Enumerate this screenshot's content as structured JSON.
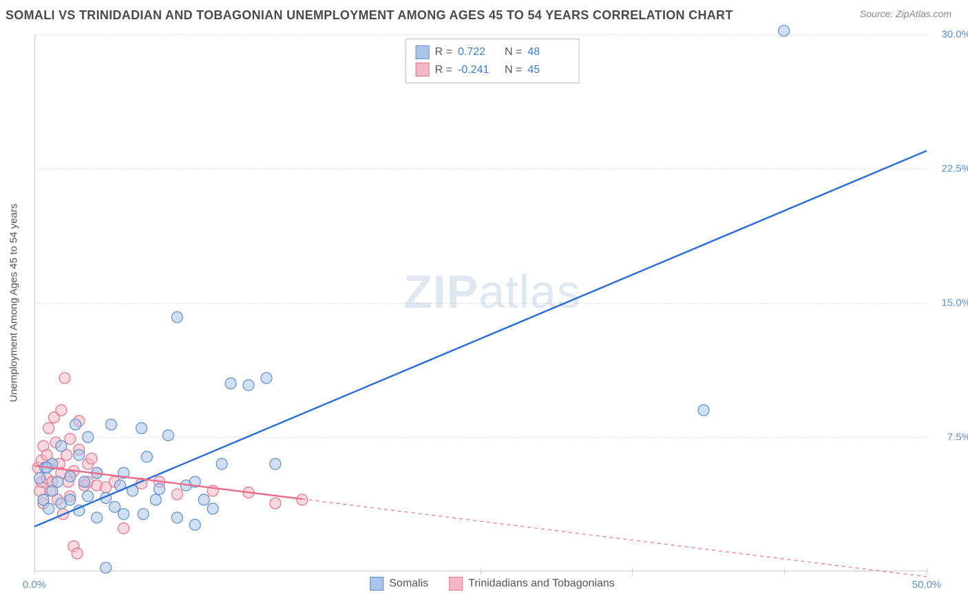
{
  "title": "SOMALI VS TRINIDADIAN AND TOBAGONIAN UNEMPLOYMENT AMONG AGES 45 TO 54 YEARS CORRELATION CHART",
  "source": "Source: ZipAtlas.com",
  "y_axis_label": "Unemployment Among Ages 45 to 54 years",
  "watermark": {
    "part1": "ZIP",
    "part2": "atlas"
  },
  "chart": {
    "type": "scatter",
    "background_color": "#ffffff",
    "grid_color": "#e0e0e0",
    "axis_color": "#cccccc",
    "xlim": [
      0,
      50
    ],
    "ylim": [
      0,
      30
    ],
    "x_ticks": [
      {
        "pos": 0,
        "label": "0.0%"
      },
      {
        "pos": 25,
        "label": ""
      },
      {
        "pos": 33.5,
        "label": ""
      },
      {
        "pos": 42,
        "label": ""
      },
      {
        "pos": 50,
        "label": "50.0%"
      }
    ],
    "y_ticks": [
      {
        "pos": 7.5,
        "label": "7.5%"
      },
      {
        "pos": 15.0,
        "label": "15.0%"
      },
      {
        "pos": 22.5,
        "label": "22.5%"
      },
      {
        "pos": 30.0,
        "label": "30.0%"
      }
    ],
    "marker_radius": 8,
    "marker_opacity": 0.55,
    "line_width": 2.5,
    "series": [
      {
        "name": "Somalis",
        "color_fill": "#a9c5ea",
        "color_stroke": "#5b8fd6",
        "line_color": "#2d6fd6",
        "R": "0.722",
        "N": "48",
        "trend": {
          "x1": 0,
          "y1": 2.5,
          "x2": 50,
          "y2": 23.5,
          "dash_start_x": 50
        },
        "points": [
          [
            0.3,
            5.2
          ],
          [
            0.5,
            4.0
          ],
          [
            0.6,
            5.8
          ],
          [
            0.8,
            3.5
          ],
          [
            1.0,
            6.0
          ],
          [
            1.0,
            4.5
          ],
          [
            1.3,
            5.0
          ],
          [
            1.5,
            7.0
          ],
          [
            1.5,
            3.8
          ],
          [
            2.0,
            5.3
          ],
          [
            2.0,
            4.0
          ],
          [
            2.3,
            8.2
          ],
          [
            2.5,
            6.5
          ],
          [
            2.5,
            3.4
          ],
          [
            2.8,
            5.0
          ],
          [
            3.0,
            4.2
          ],
          [
            3.0,
            7.5
          ],
          [
            3.5,
            3.0
          ],
          [
            3.5,
            5.5
          ],
          [
            4.0,
            4.1
          ],
          [
            4.3,
            8.2
          ],
          [
            4.5,
            3.6
          ],
          [
            4.8,
            4.8
          ],
          [
            5.0,
            5.5
          ],
          [
            5.0,
            3.2
          ],
          [
            5.5,
            4.5
          ],
          [
            6.0,
            8.0
          ],
          [
            6.1,
            3.2
          ],
          [
            6.3,
            6.4
          ],
          [
            6.8,
            4.0
          ],
          [
            7.0,
            4.6
          ],
          [
            7.5,
            7.6
          ],
          [
            8.0,
            3.0
          ],
          [
            8.0,
            14.2
          ],
          [
            8.5,
            4.8
          ],
          [
            9.0,
            2.6
          ],
          [
            9.0,
            5.0
          ],
          [
            9.5,
            4.0
          ],
          [
            10.0,
            3.5
          ],
          [
            10.5,
            6.0
          ],
          [
            11.0,
            10.5
          ],
          [
            12.0,
            10.4
          ],
          [
            13.0,
            10.8
          ],
          [
            13.5,
            6.0
          ],
          [
            4.0,
            0.2
          ],
          [
            37.5,
            9.0
          ],
          [
            42.0,
            30.2
          ],
          [
            0.7,
            5.8
          ]
        ]
      },
      {
        "name": "Trinidadians and Tobagonians",
        "color_fill": "#f2b9c4",
        "color_stroke": "#e86f8b",
        "line_color": "#e86f8b",
        "R": "-0.241",
        "N": "45",
        "trend": {
          "x1": 0,
          "y1": 5.9,
          "x2": 50,
          "y2": -0.3,
          "dash_start_x": 15
        },
        "points": [
          [
            0.2,
            5.8
          ],
          [
            0.3,
            4.5
          ],
          [
            0.4,
            6.2
          ],
          [
            0.4,
            5.0
          ],
          [
            0.5,
            7.0
          ],
          [
            0.5,
            3.8
          ],
          [
            0.7,
            6.5
          ],
          [
            0.7,
            5.2
          ],
          [
            0.8,
            8.0
          ],
          [
            0.9,
            4.5
          ],
          [
            1.0,
            6.0
          ],
          [
            1.0,
            5.0
          ],
          [
            1.1,
            8.6
          ],
          [
            1.2,
            7.2
          ],
          [
            1.3,
            4.0
          ],
          [
            1.4,
            6.0
          ],
          [
            1.5,
            5.5
          ],
          [
            1.5,
            9.0
          ],
          [
            1.6,
            3.2
          ],
          [
            1.7,
            10.8
          ],
          [
            1.8,
            6.5
          ],
          [
            1.9,
            5.0
          ],
          [
            2.0,
            7.4
          ],
          [
            2.0,
            4.2
          ],
          [
            2.2,
            5.6
          ],
          [
            2.2,
            1.4
          ],
          [
            2.4,
            1.0
          ],
          [
            2.5,
            6.8
          ],
          [
            2.5,
            8.4
          ],
          [
            2.8,
            4.8
          ],
          [
            3.0,
            6.0
          ],
          [
            3.0,
            5.0
          ],
          [
            3.2,
            6.3
          ],
          [
            3.5,
            4.8
          ],
          [
            3.5,
            5.5
          ],
          [
            4.0,
            4.7
          ],
          [
            4.5,
            5.0
          ],
          [
            5.0,
            2.4
          ],
          [
            6.0,
            4.9
          ],
          [
            7.0,
            5.0
          ],
          [
            8.0,
            4.3
          ],
          [
            10.0,
            4.5
          ],
          [
            12.0,
            4.4
          ],
          [
            13.5,
            3.8
          ],
          [
            15.0,
            4.0
          ]
        ]
      }
    ],
    "stats_legend_labels": {
      "R": "R =",
      "N": "N ="
    },
    "title_fontsize": 18,
    "label_fontsize": 15,
    "tick_fontsize": 15,
    "legend_fontsize": 16
  }
}
